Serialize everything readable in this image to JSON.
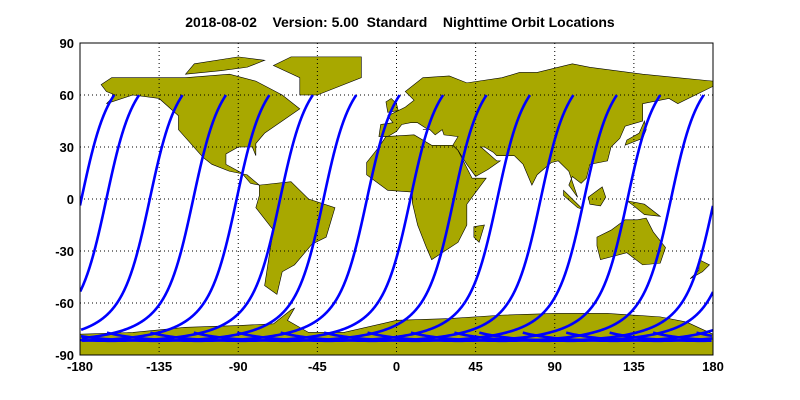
{
  "chart_data": {
    "type": "line",
    "title": "2018-08-02    Version: 5.00  Standard    Nighttime Orbit Locations",
    "xlabel": "",
    "ylabel": "",
    "xlim": [
      -180,
      180
    ],
    "ylim": [
      -90,
      90
    ],
    "xticks": [
      "-180",
      "-135",
      "-90",
      "-45",
      "0",
      "45",
      "90",
      "135",
      "180"
    ],
    "yticks": [
      "90",
      "60",
      "30",
      "0",
      "-30",
      "-60",
      "-90"
    ],
    "grid": true,
    "grid_style": "dotted",
    "land_color": "#a8a800",
    "track_color": "#0000ff",
    "orbit_tracks": {
      "equator_crossing_longitudes": [
        -165,
        -140.3,
        -115.6,
        -90.9,
        -66.2,
        -41.5,
        -16.8,
        7.9,
        32.6,
        57.3,
        82,
        106.7,
        131.4,
        156.1,
        180.8
      ],
      "max_latitude": 60,
      "min_latitude": -82
    }
  }
}
